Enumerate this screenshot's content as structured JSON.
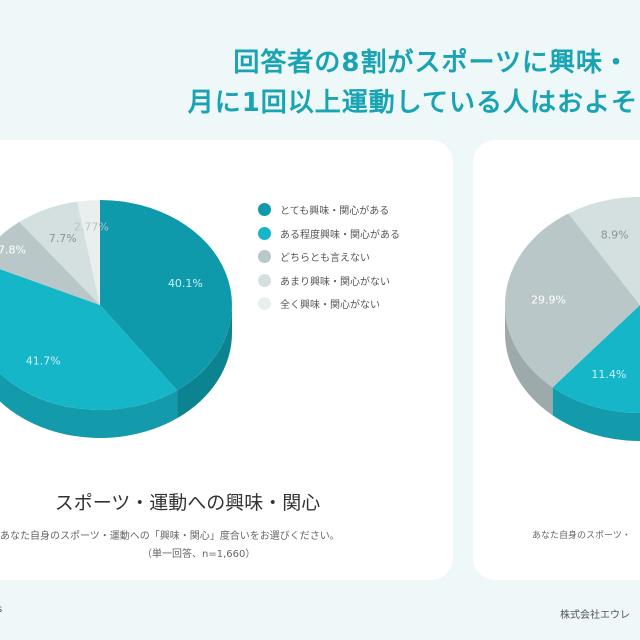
{
  "header": {
    "line1": "回答者の8割がスポーツに興味・",
    "line2": "月に1回以上運動している人はおよそ"
  },
  "colors": [
    "#0e9aaa",
    "#16b6c9",
    "#b9c7c9",
    "#d4dfe0",
    "#e9efef"
  ],
  "chart_data": [
    {
      "type": "pie",
      "title": "スポーツ・運動への興味・関心",
      "categories": [
        "とても興味・関心がある",
        "ある程度興味・関心がある",
        "どちらとも言えない",
        "あまり興味・関心がない",
        "全く興味・関心がない"
      ],
      "values": [
        40.1,
        41.7,
        7.8,
        7.7,
        2.77
      ],
      "labels": [
        "40.1%",
        "41.7%",
        "7.8%",
        "7.7%",
        "2.77%"
      ],
      "legend": "right",
      "question": "あなた自身のスポーツ・運動への「興味・関心」度合いをお選びください。",
      "note": "（単一回答、n=1,660）"
    },
    {
      "type": "pie",
      "values_visible_counterclockwise_from_top": [
        8.9,
        29.9,
        11.4
      ],
      "labels": [
        "8.9%",
        "29.9%",
        "11.4%"
      ],
      "question": "あなた自身のスポーツ・"
    }
  ],
  "footer": {
    "left": "s",
    "right": "株式会社エウレ"
  }
}
